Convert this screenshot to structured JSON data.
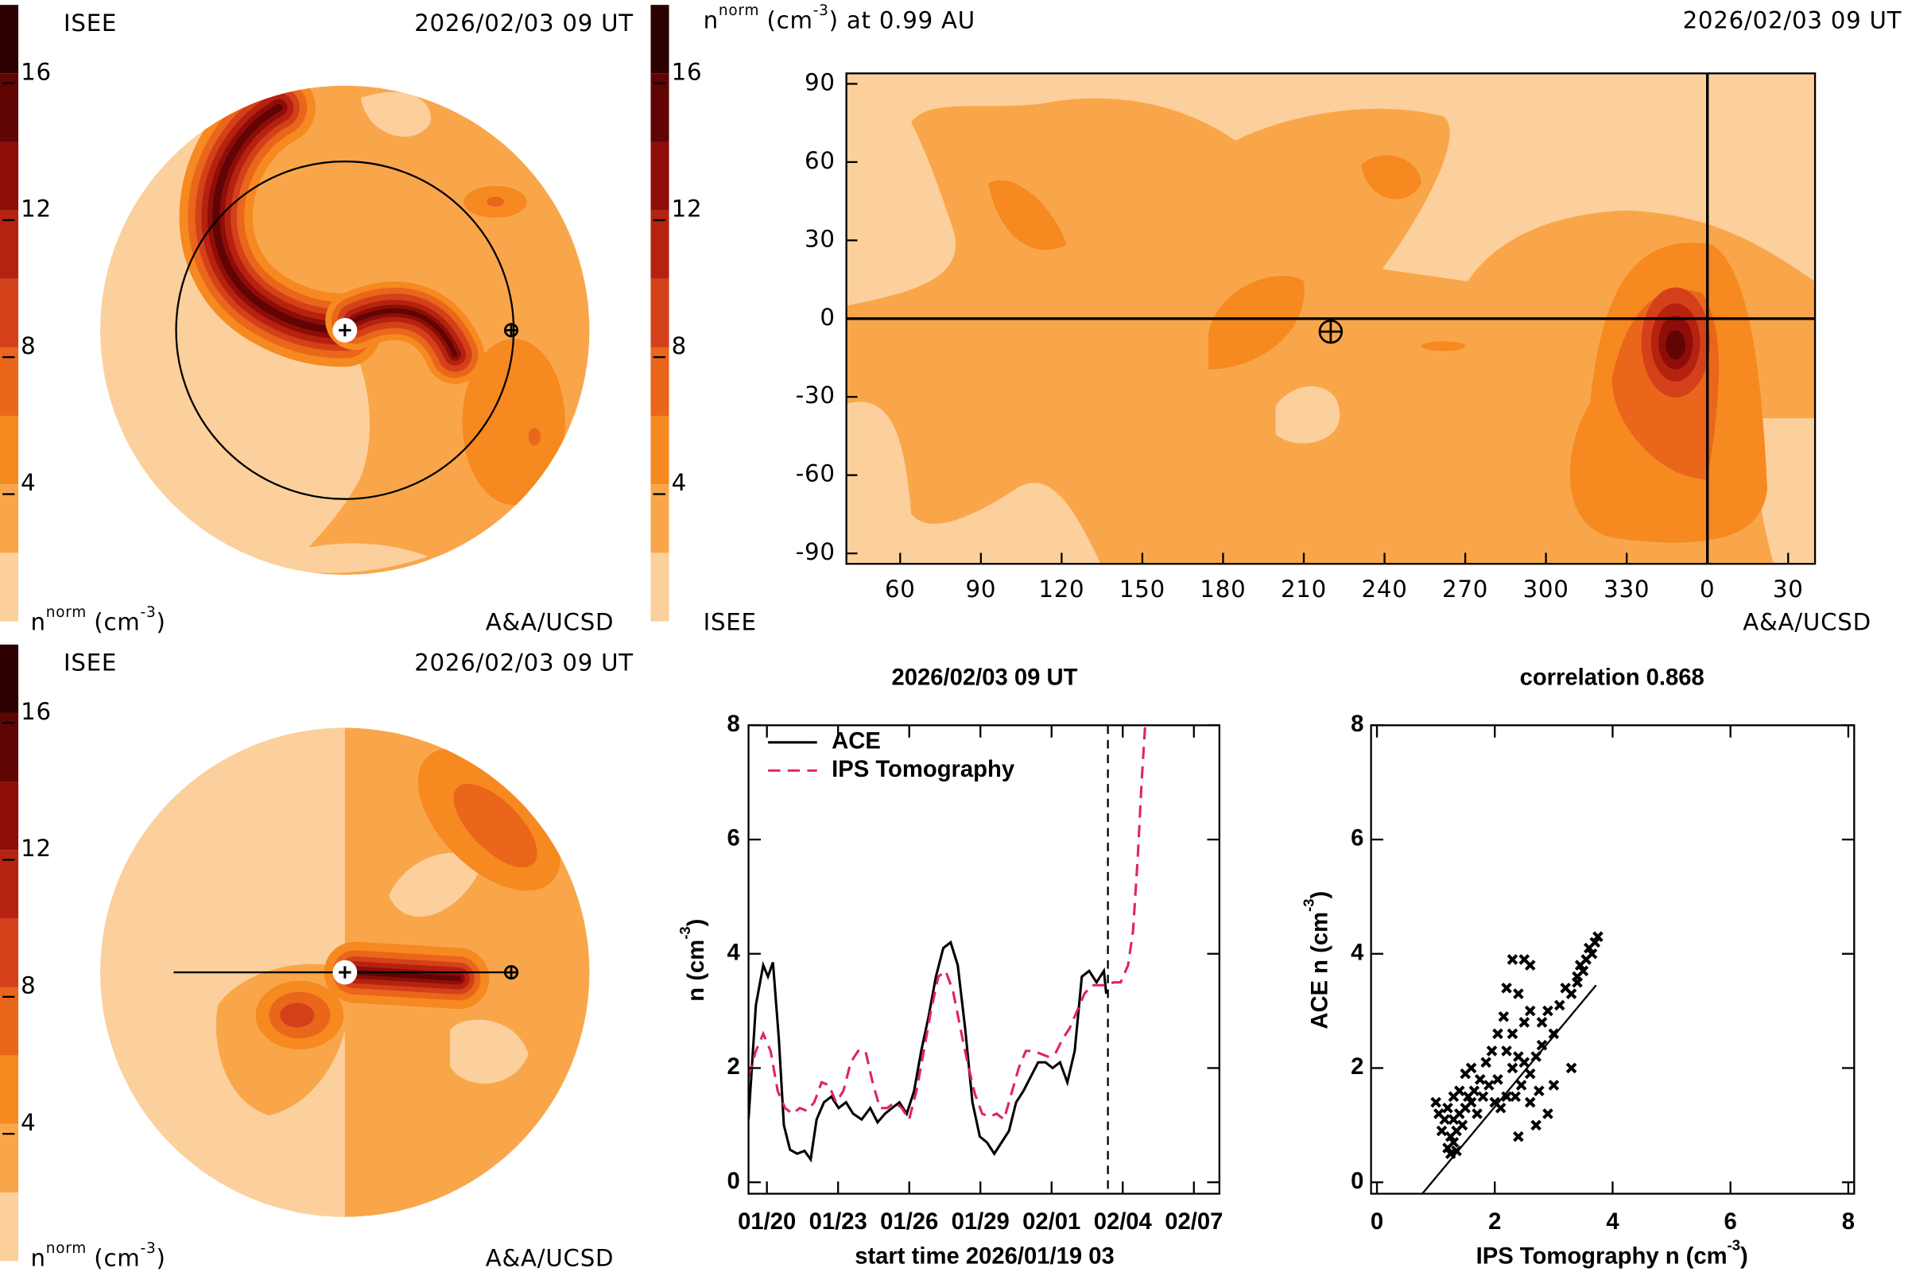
{
  "chart_data": [
    {
      "type": "polar-contour",
      "label": "ISEE",
      "time": "2026/02/03 09 UT",
      "credit": "A&A/UCSD",
      "colorbar_label": {
        "text": "n",
        "sup": "norm",
        "unit": "(cm",
        "unit_sup": "-3",
        "end": ")"
      },
      "colorbar": {
        "levels": [
          0,
          2,
          4,
          6,
          8,
          10,
          12,
          14,
          16,
          18
        ],
        "colors": [
          "#fcd09c",
          "#f9a64b",
          "#f6891f",
          "#e9661a",
          "#d4401a",
          "#b5220f",
          "#8f0d08",
          "#600404",
          "#2c0000"
        ],
        "ticks": [
          4,
          8,
          12,
          16
        ]
      }
    },
    {
      "type": "map-contour",
      "title": {
        "text": "n",
        "sup": "norm",
        "unit": "(cm",
        "unit_sup": "-3",
        "end": ") at 0.99 AU"
      },
      "time": "2026/02/03 09 UT",
      "label": "ISEE",
      "credit": "A&A/UCSD",
      "colorbar": {
        "levels": [
          0,
          2,
          4,
          6,
          8,
          10,
          12,
          14,
          16,
          18
        ],
        "colors": [
          "#fcd09c",
          "#f9a64b",
          "#f6891f",
          "#e9661a",
          "#d4401a",
          "#b5220f",
          "#8f0d08",
          "#600404",
          "#2c0000"
        ],
        "ticks": [
          4,
          8,
          12,
          16
        ]
      },
      "xlim": [
        40,
        400
      ],
      "xticks": [
        60,
        90,
        120,
        150,
        180,
        210,
        240,
        270,
        300,
        330,
        {
          "value": 360,
          "label": "0"
        },
        {
          "value": 390,
          "label": "30"
        }
      ],
      "ylim": [
        -94,
        94
      ],
      "yticks": [
        -90,
        -60,
        -30,
        0,
        30,
        60,
        90
      ],
      "crosshair_lon": 360,
      "crosshair_lat": 0,
      "earth": [
        220,
        -5
      ]
    },
    {
      "type": "polar-contour",
      "label": "ISEE",
      "time": "2026/02/03 09 UT",
      "credit": "A&A/UCSD",
      "colorbar_label": {
        "text": "n",
        "sup": "norm",
        "unit": "(cm",
        "unit_sup": "-3",
        "end": ")"
      },
      "colorbar": {
        "levels": [
          0,
          2,
          4,
          6,
          8,
          10,
          12,
          14,
          16,
          18
        ],
        "colors": [
          "#fcd09c",
          "#f9a64b",
          "#f6891f",
          "#e9661a",
          "#d4401a",
          "#b5220f",
          "#8f0d08",
          "#600404",
          "#2c0000"
        ],
        "ticks": [
          4,
          8,
          12,
          16
        ]
      }
    },
    {
      "type": "line",
      "title": "2026/02/03 09 UT",
      "xlabel": "start time 2026/01/19 03",
      "ylabel": {
        "text": "n (cm",
        "sup": "-3",
        "end": ")"
      },
      "xlim": [
        0.1,
        19.95
      ],
      "ylim": [
        -0.2,
        8
      ],
      "xticks": [
        {
          "value": 0.875,
          "label": "01/20"
        },
        {
          "value": 3.875,
          "label": "01/23"
        },
        {
          "value": 6.875,
          "label": "01/26"
        },
        {
          "value": 9.875,
          "label": "01/29"
        },
        {
          "value": 12.875,
          "label": "02/01"
        },
        {
          "value": 15.875,
          "label": "02/04"
        },
        {
          "value": 18.875,
          "label": "02/07"
        }
      ],
      "yticks": [
        0,
        2,
        4,
        6,
        8
      ],
      "marker_x": 15.25,
      "legend": "upper left",
      "series": [
        {
          "name": "ACE",
          "color": "#000000",
          "dash": false,
          "x": [
            0.1,
            0.41,
            0.72,
            0.92,
            1.13,
            1.38,
            1.59,
            1.85,
            2.15,
            2.46,
            2.72,
            2.97,
            3.28,
            3.59,
            3.9,
            4.21,
            4.51,
            4.87,
            5.23,
            5.54,
            5.85,
            6.15,
            6.46,
            6.77,
            7.08,
            7.38,
            7.69,
            8.0,
            8.31,
            8.62,
            8.92,
            9.23,
            9.54,
            9.85,
            10.15,
            10.46,
            10.77,
            11.08,
            11.38,
            11.69,
            12.0,
            12.31,
            12.62,
            12.92,
            13.23,
            13.54,
            13.85,
            14.15,
            14.46,
            14.77,
            15.08,
            15.18
          ],
          "values": [
            1.1,
            3.1,
            3.8,
            3.6,
            3.85,
            2.5,
            1.0,
            0.57,
            0.5,
            0.55,
            0.4,
            1.1,
            1.4,
            1.5,
            1.3,
            1.4,
            1.2,
            1.1,
            1.3,
            1.05,
            1.2,
            1.3,
            1.4,
            1.2,
            1.6,
            2.3,
            2.9,
            3.6,
            4.1,
            4.2,
            3.8,
            2.7,
            1.4,
            0.8,
            0.7,
            0.5,
            0.7,
            0.9,
            1.4,
            1.6,
            1.85,
            2.1,
            2.1,
            2.0,
            2.1,
            1.75,
            2.3,
            3.6,
            3.7,
            3.5,
            3.7,
            3.3
          ]
        },
        {
          "name": "IPS Tomography",
          "color": "#e0245e",
          "dash": true,
          "x": [
            0.1,
            0.41,
            0.72,
            1.03,
            1.33,
            1.64,
            1.95,
            2.26,
            2.56,
            2.87,
            3.18,
            3.49,
            3.79,
            4.1,
            4.41,
            4.72,
            5.03,
            5.33,
            5.64,
            5.95,
            6.26,
            6.56,
            6.87,
            7.18,
            7.49,
            7.79,
            8.1,
            8.41,
            8.72,
            9.03,
            9.33,
            9.64,
            9.95,
            10.26,
            10.56,
            10.87,
            11.18,
            11.49,
            11.79,
            12.1,
            12.41,
            12.72,
            13.03,
            13.33,
            13.64,
            13.95,
            14.26,
            14.56,
            14.87,
            15.18,
            15.49,
            15.79,
            16.1,
            16.31,
            16.51,
            16.67,
            16.82
          ],
          "values": [
            1.85,
            2.3,
            2.6,
            2.3,
            1.6,
            1.3,
            1.2,
            1.3,
            1.25,
            1.4,
            1.75,
            1.7,
            1.4,
            1.6,
            2.1,
            2.3,
            2.3,
            1.75,
            1.3,
            1.3,
            1.4,
            1.3,
            1.1,
            1.6,
            2.3,
            3.0,
            3.6,
            3.7,
            3.35,
            2.7,
            2.1,
            1.55,
            1.2,
            1.15,
            1.2,
            1.1,
            1.55,
            2.0,
            2.3,
            2.3,
            2.25,
            2.2,
            2.25,
            2.5,
            2.7,
            3.0,
            3.3,
            3.45,
            3.45,
            3.45,
            3.5,
            3.5,
            3.8,
            4.4,
            5.7,
            7.0,
            8.0
          ]
        }
      ]
    },
    {
      "type": "scatter",
      "title": "correlation 0.868",
      "xlabel": {
        "text": "IPS Tomography n (cm",
        "sup": "-3",
        "end": ")"
      },
      "ylabel": {
        "text": "ACE n (cm",
        "sup": "-3",
        "end": ")"
      },
      "xlim": [
        -0.1,
        8.1
      ],
      "ylim": [
        -0.2,
        8
      ],
      "xticks": [
        0,
        2,
        4,
        6,
        8
      ],
      "yticks": [
        0,
        2,
        4,
        6,
        8
      ],
      "color": "#000000",
      "x": [
        1.2,
        1.25,
        1.3,
        1.35,
        1.3,
        1.2,
        1.4,
        1.45,
        1.5,
        1.55,
        1.6,
        1.7,
        1.65,
        1.8,
        1.9,
        1.75,
        1.4,
        1.3,
        1.25,
        1.35,
        1.15,
        1.5,
        2.0,
        2.1,
        2.2,
        2.05,
        2.3,
        2.4,
        2.2,
        2.5,
        2.6,
        2.45,
        2.35,
        2.6,
        2.7,
        2.4,
        2.3,
        2.5,
        2.6,
        2.4,
        2.2,
        2.3,
        2.5,
        2.6,
        2.8,
        2.9,
        3.0,
        3.1,
        3.2,
        3.4,
        3.45,
        3.5,
        3.55,
        3.6,
        3.7,
        3.75,
        3.65,
        3.4,
        3.3,
        2.7,
        2.8,
        1.85,
        1.95,
        2.05,
        2.15,
        1.6,
        1.0,
        1.05,
        1.1,
        2.9,
        3.0,
        2.75,
        3.3
      ],
      "values": [
        0.6,
        0.8,
        0.7,
        0.9,
        1.1,
        1.3,
        1.2,
        1.0,
        1.3,
        1.5,
        1.4,
        1.2,
        1.6,
        1.5,
        1.7,
        1.8,
        1.6,
        1.5,
        0.5,
        0.55,
        1.1,
        1.9,
        1.4,
        1.3,
        1.5,
        1.8,
        2.0,
        2.2,
        2.3,
        2.1,
        1.9,
        1.7,
        1.5,
        1.4,
        1.0,
        0.8,
        2.6,
        2.8,
        3.0,
        3.3,
        3.4,
        3.9,
        3.9,
        3.8,
        2.8,
        3.0,
        2.6,
        3.1,
        3.4,
        3.6,
        3.8,
        3.7,
        3.9,
        4.1,
        4.2,
        4.3,
        4.0,
        3.5,
        3.3,
        2.2,
        2.4,
        2.1,
        2.3,
        2.6,
        2.9,
        2.0,
        1.4,
        1.2,
        0.9,
        1.2,
        1.7,
        1.6,
        2.0
      ],
      "fit": {
        "x": [
          0.77,
          3.72
        ],
        "y": [
          -0.2,
          3.45
        ]
      }
    }
  ]
}
